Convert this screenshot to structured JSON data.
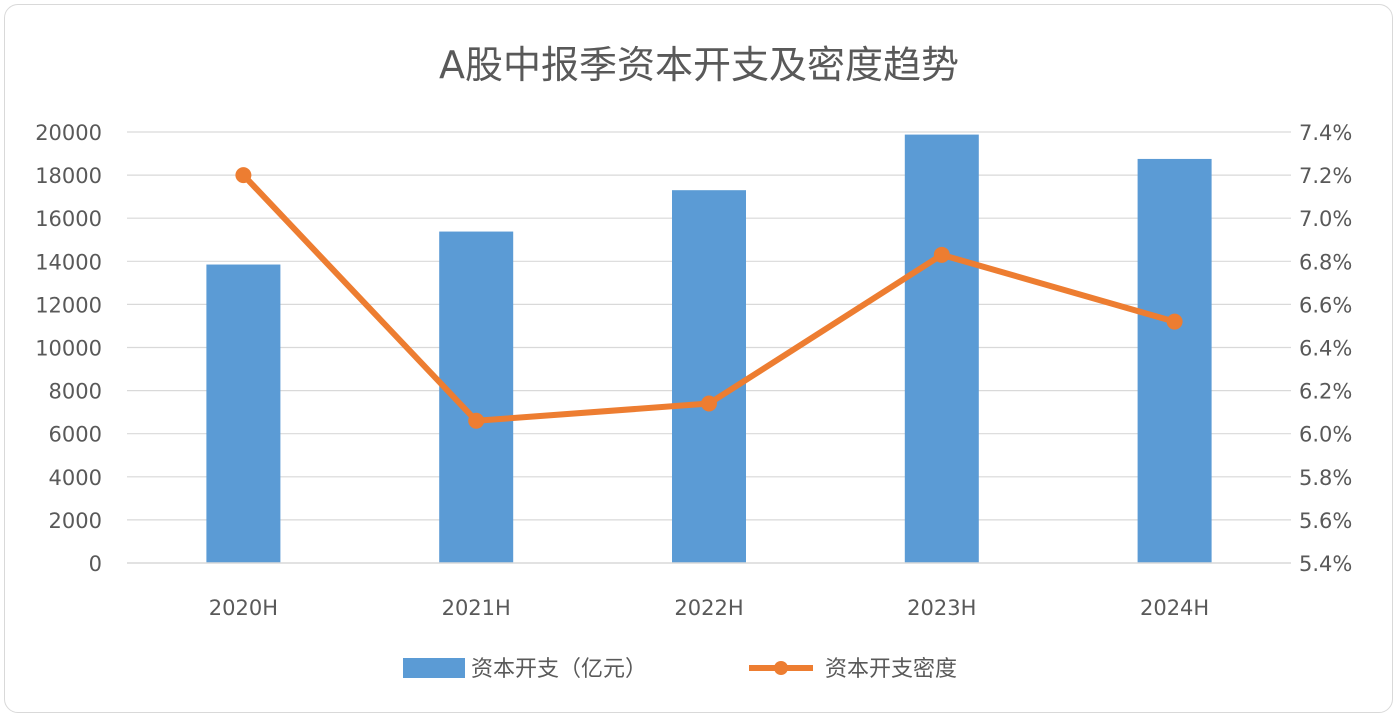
{
  "chart_data": {
    "type": "bar",
    "title": "A股中报季资本开支及密度趋势",
    "categories": [
      "2020H",
      "2021H",
      "2022H",
      "2023H",
      "2024H"
    ],
    "series": [
      {
        "name": "资本开支（亿元）",
        "type": "bar",
        "axis": "left",
        "color": "#5b9bd5",
        "values": [
          13850,
          15380,
          17300,
          19880,
          18750
        ]
      },
      {
        "name": "资本开支密度",
        "type": "line",
        "axis": "right",
        "color": "#ed7d31",
        "values": [
          7.2,
          6.06,
          6.14,
          6.83,
          6.52
        ]
      }
    ],
    "y_left": {
      "ylim": [
        0,
        20000
      ],
      "ticks": [
        "0",
        "2000",
        "4000",
        "6000",
        "8000",
        "10000",
        "12000",
        "14000",
        "16000",
        "18000",
        "20000"
      ]
    },
    "y_right": {
      "ylim": [
        5.4,
        7.4
      ],
      "ticks": [
        "5.4%",
        "5.6%",
        "5.8%",
        "6.0%",
        "6.2%",
        "6.4%",
        "6.6%",
        "6.8%",
        "7.0%",
        "7.2%",
        "7.4%"
      ]
    },
    "grid": true,
    "legend": "bottom"
  }
}
